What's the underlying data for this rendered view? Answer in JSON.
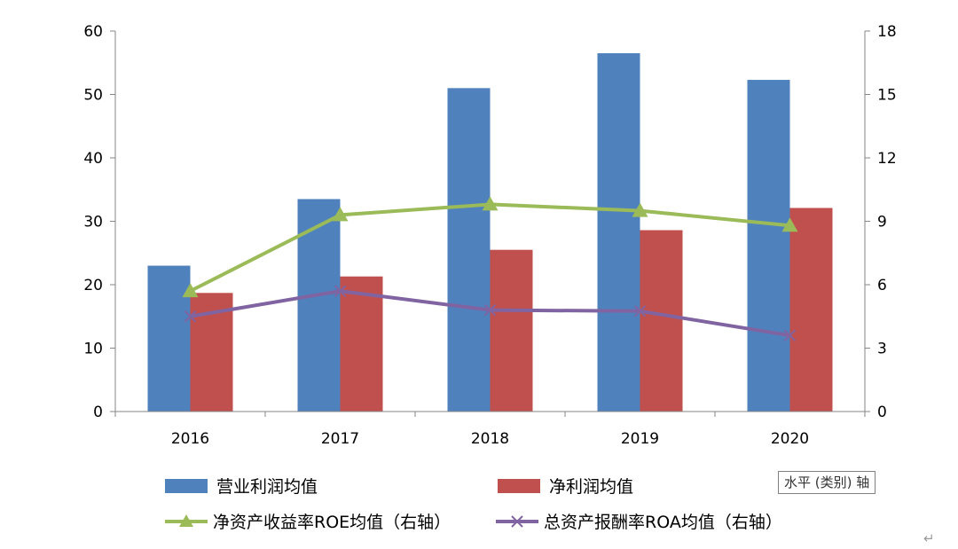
{
  "chart_data": {
    "type": "bar",
    "categories": [
      "2016",
      "2017",
      "2018",
      "2019",
      "2020"
    ],
    "y_left": {
      "lim": [
        0,
        60
      ],
      "ticks": [
        "0",
        "10",
        "20",
        "30",
        "40",
        "50",
        "60"
      ]
    },
    "y_right": {
      "lim": [
        0,
        18
      ],
      "ticks": [
        "0",
        "3",
        "6",
        "9",
        "12",
        "15",
        "18"
      ]
    },
    "series": [
      {
        "name": "营业利润均值",
        "type": "bar",
        "axis": "left",
        "color": "#4F81BD",
        "values": [
          23.0,
          33.5,
          51.0,
          56.5,
          52.3
        ]
      },
      {
        "name": "净利润均值",
        "type": "bar",
        "axis": "left",
        "color": "#C0504D",
        "values": [
          18.7,
          21.3,
          25.5,
          28.6,
          32.1
        ]
      },
      {
        "name": "净资产收益率ROE均值（右轴）",
        "type": "line",
        "axis": "right",
        "marker": "triangle",
        "color": "#9BBB59",
        "values": [
          5.7,
          9.3,
          9.8,
          9.5,
          8.8
        ]
      },
      {
        "name": "总资产报酬率ROA均值（右轴）",
        "type": "line",
        "axis": "right",
        "marker": "x",
        "color": "#8064A2",
        "values": [
          4.5,
          5.7,
          4.8,
          4.75,
          3.6
        ]
      }
    ],
    "grid": false,
    "legend_position": "bottom"
  },
  "tooltip": "水平 (类别) 轴",
  "return_mark": "↵"
}
